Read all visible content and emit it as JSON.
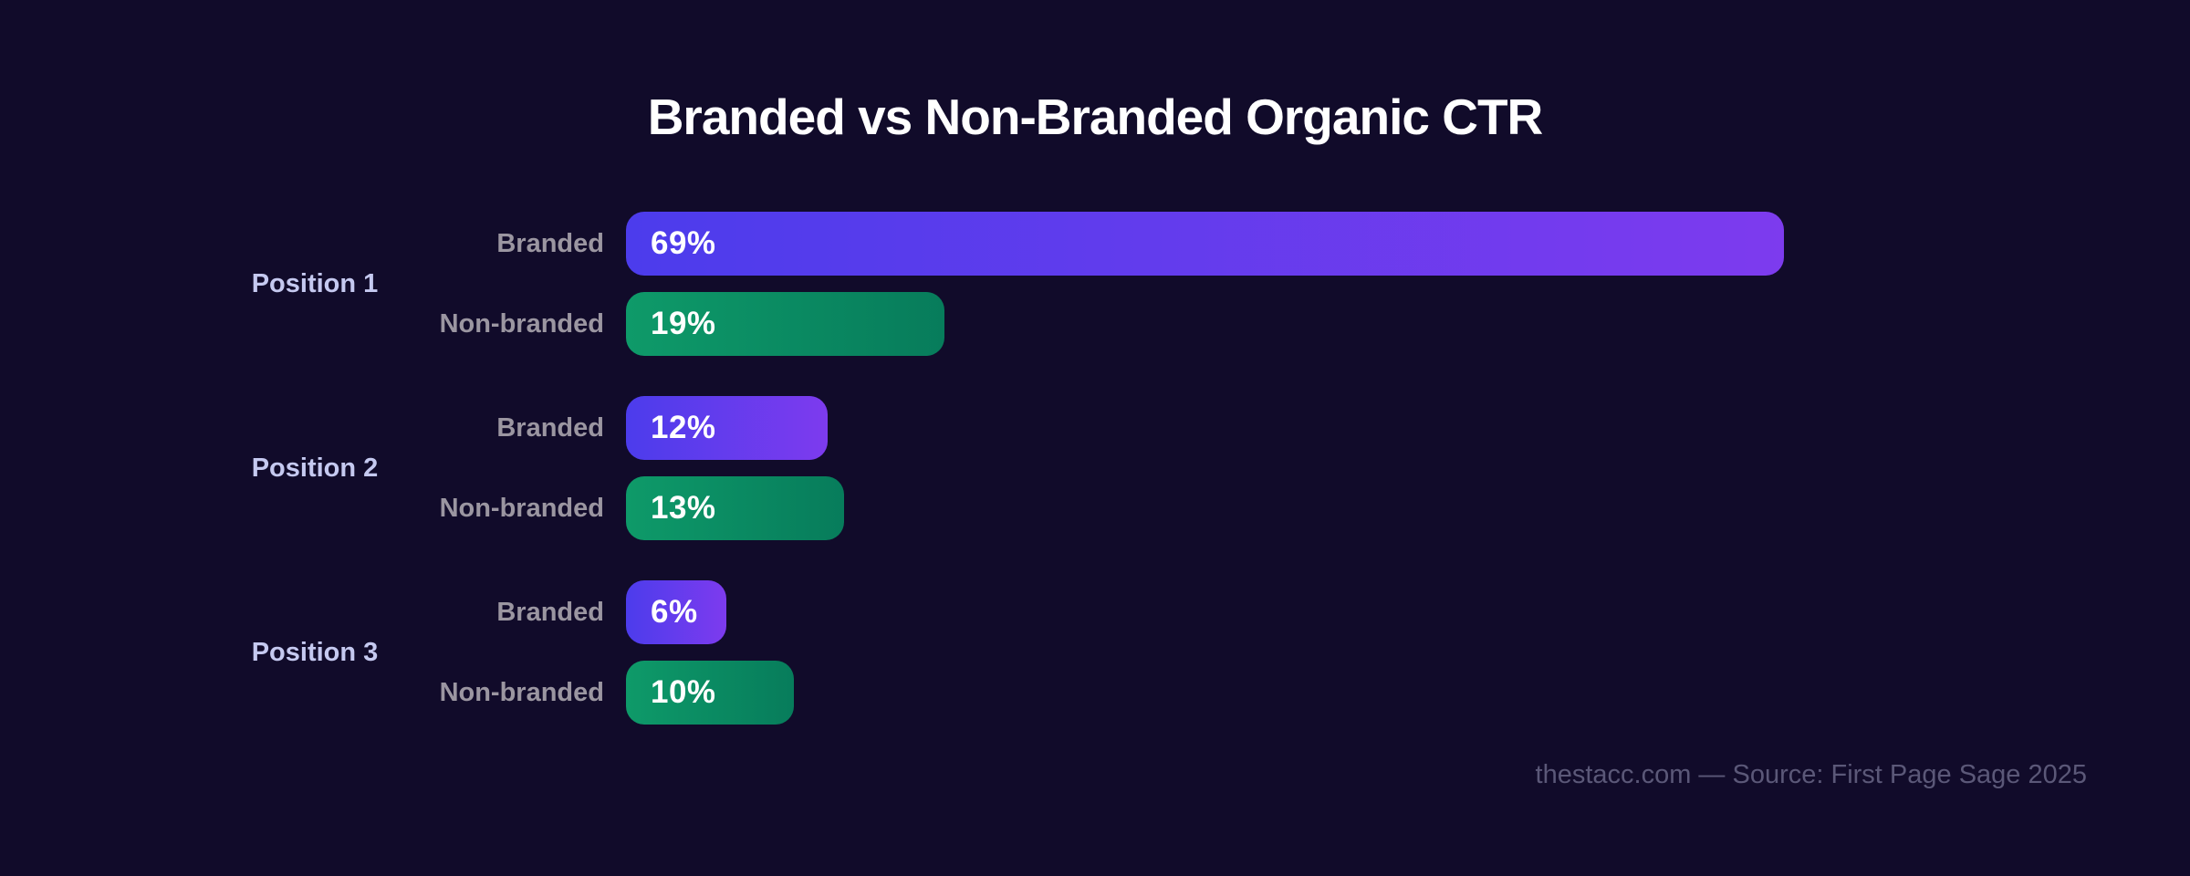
{
  "chart_data": {
    "type": "bar",
    "orientation": "horizontal",
    "title": "Branded vs Non-Branded Organic CTR",
    "categories": [
      "Position 1",
      "Position 2",
      "Position 3"
    ],
    "series": [
      {
        "name": "Branded",
        "values": [
          69,
          12,
          6
        ],
        "gradient": [
          "#4c3cec",
          "#7d3bee"
        ]
      },
      {
        "name": "Non-branded",
        "values": [
          19,
          13,
          10
        ],
        "gradient": [
          "#0e9a69",
          "#077c5b"
        ]
      }
    ],
    "value_suffix": "%",
    "xlim": [
      0,
      87
    ],
    "grid": false,
    "legend_position": "row-labels"
  },
  "footer": {
    "attribution": "thestacc.com — Source: First Page Sage 2025"
  },
  "colors": {
    "background": "#110b2a",
    "title": "#ffffff",
    "category_label": "#c5c9f0",
    "series_label": "#9b96a1",
    "value_label": "#ffffff",
    "footer": "#5b5878"
  }
}
